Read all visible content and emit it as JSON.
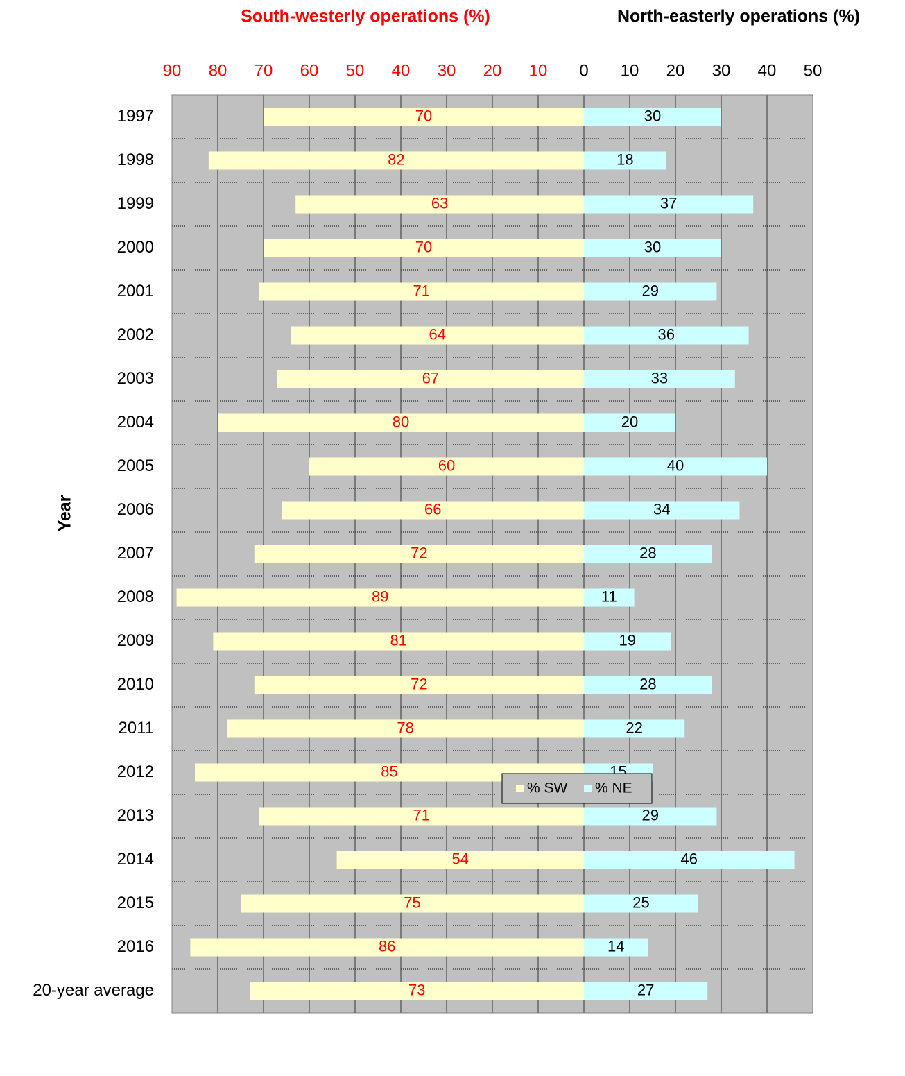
{
  "chart_data": {
    "type": "bar",
    "orientation": "horizontal",
    "layout": "diverging",
    "title_left": "South-westerly operations (%)",
    "title_right": "North-easterly operations (%)",
    "title_left_color": "#ff0000",
    "title_right_color": "#000000",
    "y_label": "Year",
    "categories": [
      "1997",
      "1998",
      "1999",
      "2000",
      "2001",
      "2002",
      "2003",
      "2004",
      "2005",
      "2006",
      "2007",
      "2008",
      "2009",
      "2010",
      "2011",
      "2012",
      "2013",
      "2014",
      "2015",
      "2016",
      "20-year average"
    ],
    "series": [
      {
        "name": "% SW",
        "color": "#ffffcc",
        "label_color": "#ff0000",
        "side": "left",
        "values": [
          70,
          82,
          63,
          70,
          71,
          64,
          67,
          80,
          60,
          66,
          72,
          89,
          81,
          72,
          78,
          85,
          71,
          54,
          75,
          86,
          73
        ]
      },
      {
        "name": "% NE",
        "color": "#ccffff",
        "label_color": "#000000",
        "side": "right",
        "values": [
          30,
          18,
          37,
          30,
          29,
          36,
          33,
          20,
          40,
          34,
          28,
          11,
          19,
          28,
          22,
          15,
          29,
          46,
          25,
          14,
          27
        ]
      }
    ],
    "left_xlim": [
      0,
      90
    ],
    "left_xticks": [
      90,
      80,
      70,
      60,
      50,
      40,
      30,
      20,
      10
    ],
    "right_xlim": [
      0,
      50
    ],
    "right_xticks": [
      0,
      10,
      20,
      30,
      40,
      50
    ],
    "grid": true,
    "plot_background": "#c0c0c0",
    "legend": "bottom"
  }
}
